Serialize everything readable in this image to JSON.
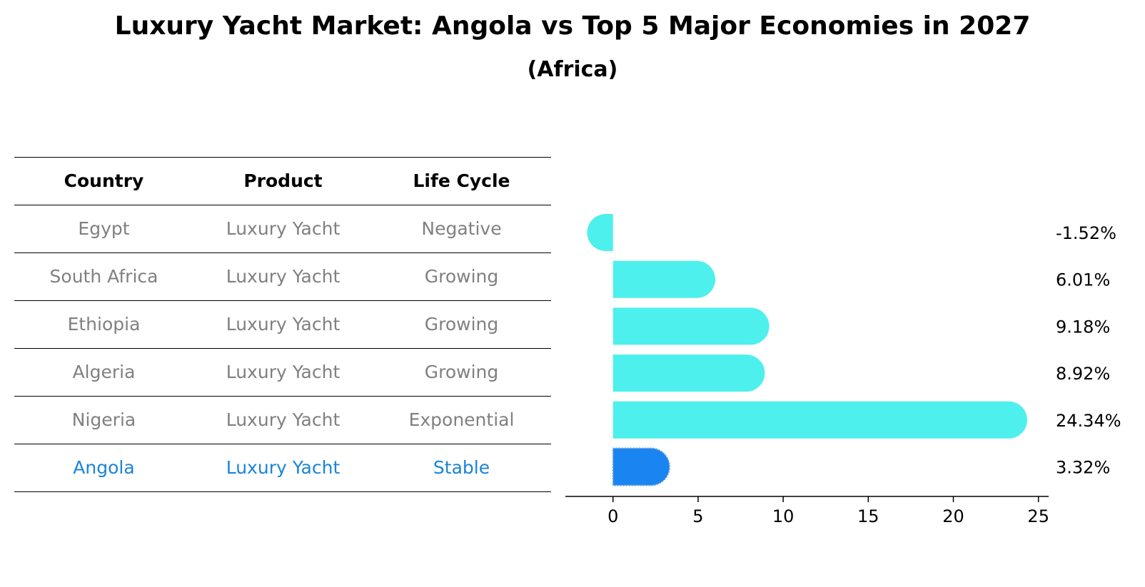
{
  "header": {
    "title": "Luxury Yacht Market: Angola vs Top 5 Major Economies in 2027",
    "subtitle": "(Africa)"
  },
  "table": {
    "columns": [
      "Country",
      "Product",
      "Life Cycle"
    ],
    "rows": [
      {
        "country": "Egypt",
        "product": "Luxury Yacht",
        "life_cycle": "Negative"
      },
      {
        "country": "South Africa",
        "product": "Luxury Yacht",
        "life_cycle": "Growing"
      },
      {
        "country": "Ethiopia",
        "product": "Luxury Yacht",
        "life_cycle": "Growing"
      },
      {
        "country": "Algeria",
        "product": "Luxury Yacht",
        "life_cycle": "Growing"
      },
      {
        "country": "Nigeria",
        "product": "Luxury Yacht",
        "life_cycle": "Exponential"
      },
      {
        "country": "Angola",
        "product": "Luxury Yacht",
        "life_cycle": "Stable"
      }
    ],
    "colors": {
      "text": "#808080",
      "highlight": "#1a84d8"
    }
  },
  "chart_data": {
    "type": "bar",
    "orientation": "horizontal",
    "categories": [
      "Egypt",
      "South Africa",
      "Ethiopia",
      "Algeria",
      "Nigeria",
      "Angola"
    ],
    "values": [
      -1.52,
      6.01,
      9.18,
      8.92,
      24.34,
      3.32
    ],
    "value_labels": [
      "-1.52%",
      "6.01%",
      "9.18%",
      "8.92%",
      "24.34%",
      "3.32%"
    ],
    "highlight_index": 5,
    "xlim": [
      -2.8,
      25.6
    ],
    "xticks": [
      0,
      5,
      10,
      15,
      20,
      25
    ],
    "grid": false,
    "colors": {
      "bar": "#4df0ec",
      "highlight": "#1a84f0"
    }
  }
}
